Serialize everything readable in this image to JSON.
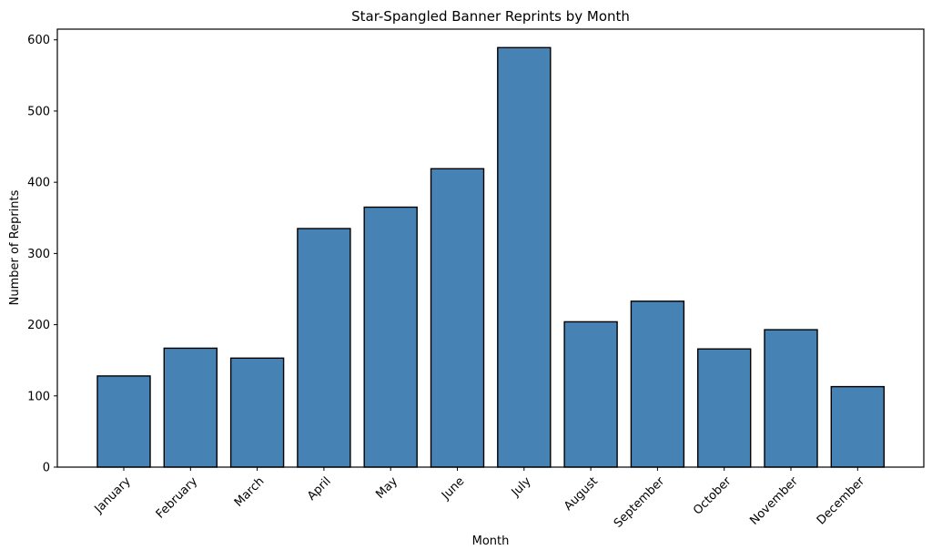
{
  "chart_data": {
    "type": "bar",
    "title": "Star-Spangled Banner Reprints by Month",
    "xlabel": "Month",
    "ylabel": "Number of Reprints",
    "categories": [
      "January",
      "February",
      "March",
      "April",
      "May",
      "June",
      "July",
      "August",
      "September",
      "October",
      "November",
      "December"
    ],
    "values": [
      128,
      167,
      153,
      335,
      365,
      419,
      589,
      204,
      233,
      166,
      193,
      113
    ],
    "ylim": [
      0,
      615
    ],
    "yticks": [
      0,
      100,
      200,
      300,
      400,
      500,
      600
    ],
    "grid": false,
    "legend": "none",
    "bar_color": "#4682b4",
    "bar_edge_color": "#000000"
  }
}
